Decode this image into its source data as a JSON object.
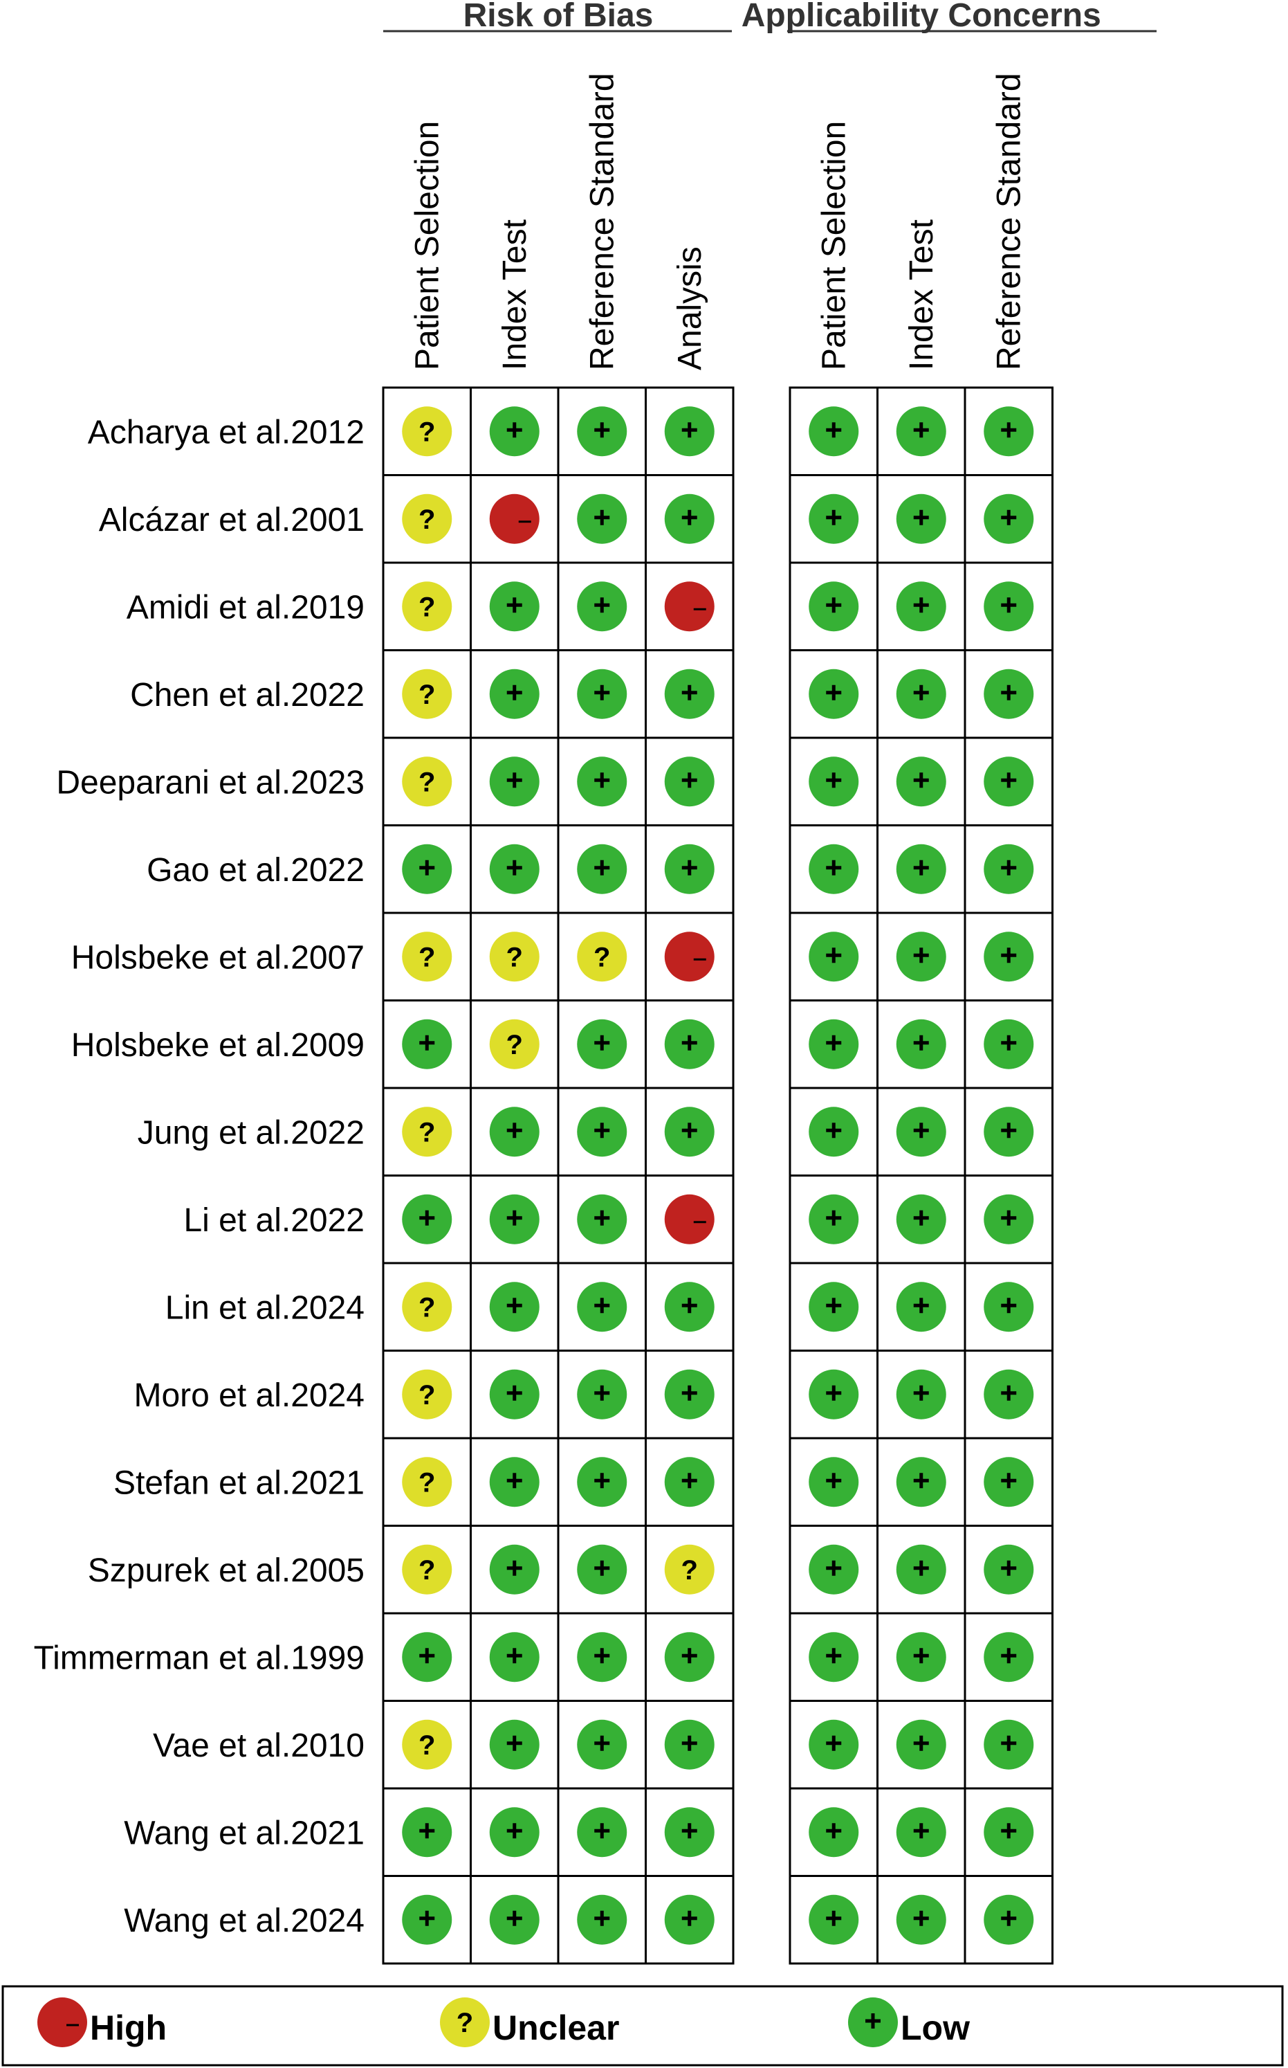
{
  "chart_data": {
    "type": "table",
    "groups": [
      {
        "title": "Risk of Bias",
        "columns": [
          "Patient Selection",
          "Index Test",
          "Reference Standard",
          "Analysis"
        ]
      },
      {
        "title": "Applicability Concerns",
        "columns": [
          "Patient Selection",
          "Index Test",
          "Reference Standard"
        ]
      }
    ],
    "rows": [
      {
        "study": "Acharya et al.2012",
        "rob": [
          "unclear",
          "low",
          "low",
          "low"
        ],
        "app": [
          "low",
          "low",
          "low"
        ]
      },
      {
        "study": "Alcázar et al.2001",
        "rob": [
          "unclear",
          "high",
          "low",
          "low"
        ],
        "app": [
          "low",
          "low",
          "low"
        ]
      },
      {
        "study": "Amidi et al.2019",
        "rob": [
          "unclear",
          "low",
          "low",
          "high"
        ],
        "app": [
          "low",
          "low",
          "low"
        ]
      },
      {
        "study": "Chen et al.2022",
        "rob": [
          "unclear",
          "low",
          "low",
          "low"
        ],
        "app": [
          "low",
          "low",
          "low"
        ]
      },
      {
        "study": "Deeparani et al.2023",
        "rob": [
          "unclear",
          "low",
          "low",
          "low"
        ],
        "app": [
          "low",
          "low",
          "low"
        ]
      },
      {
        "study": "Gao et al.2022",
        "rob": [
          "low",
          "low",
          "low",
          "low"
        ],
        "app": [
          "low",
          "low",
          "low"
        ]
      },
      {
        "study": "Holsbeke et al.2007",
        "rob": [
          "unclear",
          "unclear",
          "unclear",
          "high"
        ],
        "app": [
          "low",
          "low",
          "low"
        ]
      },
      {
        "study": "Holsbeke et al.2009",
        "rob": [
          "low",
          "unclear",
          "low",
          "low"
        ],
        "app": [
          "low",
          "low",
          "low"
        ]
      },
      {
        "study": "Jung et al.2022",
        "rob": [
          "unclear",
          "low",
          "low",
          "low"
        ],
        "app": [
          "low",
          "low",
          "low"
        ]
      },
      {
        "study": "Li et al.2022",
        "rob": [
          "low",
          "low",
          "low",
          "high"
        ],
        "app": [
          "low",
          "low",
          "low"
        ]
      },
      {
        "study": "Lin et al.2024",
        "rob": [
          "unclear",
          "low",
          "low",
          "low"
        ],
        "app": [
          "low",
          "low",
          "low"
        ]
      },
      {
        "study": "Moro et al.2024",
        "rob": [
          "unclear",
          "low",
          "low",
          "low"
        ],
        "app": [
          "low",
          "low",
          "low"
        ]
      },
      {
        "study": "Stefan et al.2021",
        "rob": [
          "unclear",
          "low",
          "low",
          "low"
        ],
        "app": [
          "low",
          "low",
          "low"
        ]
      },
      {
        "study": "Szpurek et al.2005",
        "rob": [
          "unclear",
          "low",
          "low",
          "unclear"
        ],
        "app": [
          "low",
          "low",
          "low"
        ]
      },
      {
        "study": "Timmerman et al.1999",
        "rob": [
          "low",
          "low",
          "low",
          "low"
        ],
        "app": [
          "low",
          "low",
          "low"
        ]
      },
      {
        "study": "Vae et al.2010",
        "rob": [
          "unclear",
          "low",
          "low",
          "low"
        ],
        "app": [
          "low",
          "low",
          "low"
        ]
      },
      {
        "study": "Wang et al.2021",
        "rob": [
          "low",
          "low",
          "low",
          "low"
        ],
        "app": [
          "low",
          "low",
          "low"
        ]
      },
      {
        "study": "Wang et al.2024",
        "rob": [
          "low",
          "low",
          "low",
          "low"
        ],
        "app": [
          "low",
          "low",
          "low"
        ]
      }
    ],
    "levels": {
      "high": {
        "label": "High",
        "symbol": "–",
        "color": "#c0221f"
      },
      "unclear": {
        "label": "Unclear",
        "symbol": "?",
        "color": "#dede2a"
      },
      "low": {
        "label": "Low",
        "symbol": "+",
        "color": "#36b135"
      }
    },
    "legend": [
      "high",
      "unclear",
      "low"
    ],
    "legend_placement": "bottom"
  }
}
